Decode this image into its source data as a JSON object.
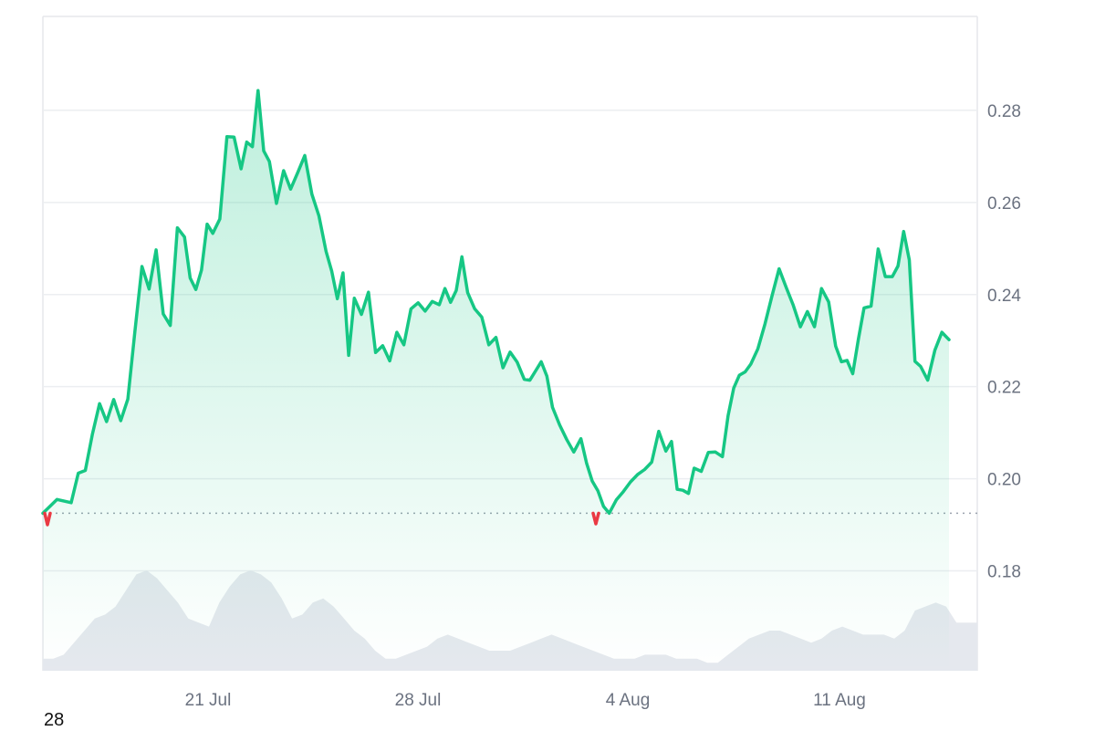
{
  "colors": {
    "line_up": "#16c784",
    "line_down": "#ea3943",
    "fill_top": "#16c784",
    "volume": "#e5e8ee",
    "grid": "#eceef1",
    "baseline_dots": "#9ca3af"
  },
  "footer_number": "28",
  "chart_data": {
    "type": "area",
    "title": "",
    "xlabel": "",
    "ylabel": "",
    "x_ticks": [
      "21 Jul",
      "28 Jul",
      "4 Aug",
      "11 Aug"
    ],
    "y_ticks": [
      "0.18",
      "0.20",
      "0.22",
      "0.24",
      "0.26",
      "0.28"
    ],
    "ylim": [
      0.1583,
      0.3004
    ],
    "xlim": [
      "2024-07-15",
      "2024-08-17"
    ],
    "grid": true,
    "baseline": 0.1925,
    "series": [
      {
        "values": [
          [
            "2024-07-15",
            0.1925
          ],
          [
            "2024-07-15",
            0.1955
          ],
          [
            "2024-07-16",
            0.1948
          ],
          [
            "2024-07-16",
            0.2012
          ],
          [
            "2024-07-16",
            0.2018
          ],
          [
            "2024-07-16",
            0.2097
          ],
          [
            "2024-07-17",
            0.2163
          ],
          [
            "2024-07-17",
            0.2124
          ],
          [
            "2024-07-17",
            0.2172
          ],
          [
            "2024-07-17",
            0.2126
          ],
          [
            "2024-07-18",
            0.2173
          ],
          [
            "2024-07-18",
            0.2319
          ],
          [
            "2024-07-18",
            0.2461
          ],
          [
            "2024-07-18",
            0.2412
          ],
          [
            "2024-07-19",
            0.2497
          ],
          [
            "2024-07-19",
            0.2358
          ],
          [
            "2024-07-19",
            0.2333
          ],
          [
            "2024-07-19",
            0.2545
          ],
          [
            "2024-07-20",
            0.2525
          ],
          [
            "2024-07-20",
            0.2436
          ],
          [
            "2024-07-20",
            0.2411
          ],
          [
            "2024-07-20",
            0.2453
          ],
          [
            "2024-07-20",
            0.2553
          ],
          [
            "2024-07-21",
            0.2533
          ],
          [
            "2024-07-21",
            0.2564
          ],
          [
            "2024-07-21",
            0.2743
          ],
          [
            "2024-07-21",
            0.2742
          ],
          [
            "2024-07-22",
            0.2673
          ],
          [
            "2024-07-22",
            0.2731
          ],
          [
            "2024-07-22",
            0.2721
          ],
          [
            "2024-07-22",
            0.2843
          ],
          [
            "2024-07-22",
            0.2712
          ],
          [
            "2024-07-23",
            0.2689
          ],
          [
            "2024-07-23",
            0.2598
          ],
          [
            "2024-07-23",
            0.2669
          ],
          [
            "2024-07-23",
            0.2629
          ],
          [
            "2024-07-24",
            0.2665
          ],
          [
            "2024-07-24",
            0.2702
          ],
          [
            "2024-07-24",
            0.2618
          ],
          [
            "2024-07-24",
            0.2571
          ],
          [
            "2024-07-25",
            0.2494
          ],
          [
            "2024-07-25",
            0.2451
          ],
          [
            "2024-07-25",
            0.2391
          ],
          [
            "2024-07-25",
            0.2447
          ],
          [
            "2024-07-25",
            0.2268
          ],
          [
            "2024-07-26",
            0.2392
          ],
          [
            "2024-07-26",
            0.2357
          ],
          [
            "2024-07-26",
            0.2405
          ],
          [
            "2024-07-26",
            0.2274
          ],
          [
            "2024-07-27",
            0.2289
          ],
          [
            "2024-07-27",
            0.2256
          ],
          [
            "2024-07-27",
            0.2318
          ],
          [
            "2024-07-27",
            0.2291
          ],
          [
            "2024-07-28",
            0.2369
          ],
          [
            "2024-07-28",
            0.2382
          ],
          [
            "2024-07-28",
            0.2364
          ],
          [
            "2024-07-28",
            0.2385
          ],
          [
            "2024-07-29",
            0.2378
          ],
          [
            "2024-07-29",
            0.2413
          ],
          [
            "2024-07-29",
            0.2383
          ],
          [
            "2024-07-29",
            0.2409
          ],
          [
            "2024-07-29",
            0.2482
          ],
          [
            "2024-07-30",
            0.2404
          ],
          [
            "2024-07-30",
            0.2369
          ],
          [
            "2024-07-30",
            0.2351
          ],
          [
            "2024-07-30",
            0.2291
          ],
          [
            "2024-07-31",
            0.2307
          ],
          [
            "2024-07-31",
            0.2241
          ],
          [
            "2024-07-31",
            0.2275
          ],
          [
            "2024-07-31",
            0.2253
          ],
          [
            "2024-08-01",
            0.2216
          ],
          [
            "2024-08-01",
            0.2214
          ],
          [
            "2024-08-01",
            0.2234
          ],
          [
            "2024-08-01",
            0.2254
          ],
          [
            "2024-08-01",
            0.2223
          ],
          [
            "2024-08-02",
            0.2155
          ],
          [
            "2024-08-02",
            0.2117
          ],
          [
            "2024-08-02",
            0.2085
          ],
          [
            "2024-08-02",
            0.2058
          ],
          [
            "2024-08-03",
            0.2087
          ],
          [
            "2024-08-03",
            0.2034
          ],
          [
            "2024-08-03",
            0.1995
          ],
          [
            "2024-08-03",
            0.1974
          ],
          [
            "2024-08-03",
            0.194
          ],
          [
            "2024-08-04",
            0.1925
          ],
          [
            "2024-08-04",
            0.1954
          ],
          [
            "2024-08-04",
            0.1972
          ],
          [
            "2024-08-04",
            0.1993
          ],
          [
            "2024-08-05",
            0.2009
          ],
          [
            "2024-08-05",
            0.202
          ],
          [
            "2024-08-05",
            0.2036
          ],
          [
            "2024-08-05",
            0.2103
          ],
          [
            "2024-08-06",
            0.206
          ],
          [
            "2024-08-06",
            0.2081
          ],
          [
            "2024-08-06",
            0.1977
          ],
          [
            "2024-08-06",
            0.1975
          ],
          [
            "2024-08-06",
            0.1968
          ],
          [
            "2024-08-07",
            0.2023
          ],
          [
            "2024-08-07",
            0.2016
          ],
          [
            "2024-08-07",
            0.2057
          ],
          [
            "2024-08-07",
            0.2058
          ],
          [
            "2024-08-08",
            0.2048
          ],
          [
            "2024-08-08",
            0.2137
          ],
          [
            "2024-08-08",
            0.2197
          ],
          [
            "2024-08-08",
            0.2225
          ],
          [
            "2024-08-08",
            0.2232
          ],
          [
            "2024-08-09",
            0.2249
          ],
          [
            "2024-08-09",
            0.2282
          ],
          [
            "2024-08-09",
            0.2336
          ],
          [
            "2024-08-09",
            0.2397
          ],
          [
            "2024-08-10",
            0.2456
          ],
          [
            "2024-08-10",
            0.2416
          ],
          [
            "2024-08-10",
            0.2377
          ],
          [
            "2024-08-10",
            0.233
          ],
          [
            "2024-08-11",
            0.2363
          ],
          [
            "2024-08-11",
            0.233
          ],
          [
            "2024-08-11",
            0.2413
          ],
          [
            "2024-08-11",
            0.2384
          ],
          [
            "2024-08-12",
            0.2288
          ],
          [
            "2024-08-12",
            0.2254
          ],
          [
            "2024-08-12",
            0.2257
          ],
          [
            "2024-08-12",
            0.2228
          ],
          [
            "2024-08-12",
            0.2303
          ],
          [
            "2024-08-13",
            0.2371
          ],
          [
            "2024-08-13",
            0.2375
          ],
          [
            "2024-08-13",
            0.2499
          ],
          [
            "2024-08-13",
            0.2439
          ],
          [
            "2024-08-14",
            0.2439
          ],
          [
            "2024-08-14",
            0.2462
          ],
          [
            "2024-08-14",
            0.2537
          ],
          [
            "2024-08-14",
            0.2475
          ],
          [
            "2024-08-14",
            0.2255
          ],
          [
            "2024-08-15",
            0.2244
          ],
          [
            "2024-08-15",
            0.2214
          ],
          [
            "2024-08-15",
            0.2279
          ],
          [
            "2024-08-15",
            0.2318
          ],
          [
            "2024-08-16",
            0.2302
          ]
        ]
      }
    ],
    "volume": [
      3,
      3,
      4,
      7,
      10,
      13,
      14,
      16,
      20,
      24,
      25,
      23,
      20,
      17,
      13,
      12,
      11,
      17,
      21,
      24,
      25,
      24,
      22,
      18,
      13,
      14,
      17,
      18,
      16,
      13,
      10,
      8,
      5,
      3,
      3,
      4,
      5,
      6,
      8,
      9,
      8,
      7,
      6,
      5,
      5,
      5,
      6,
      7,
      8,
      9,
      8,
      7,
      6,
      5,
      4,
      3,
      3,
      3,
      4,
      4,
      4,
      3,
      3,
      3,
      2,
      2,
      4,
      6,
      8,
      9,
      10,
      10,
      9,
      8,
      7,
      8,
      10,
      11,
      10,
      9,
      9,
      9,
      8,
      10,
      15,
      16,
      17,
      16,
      12,
      12,
      12
    ]
  }
}
